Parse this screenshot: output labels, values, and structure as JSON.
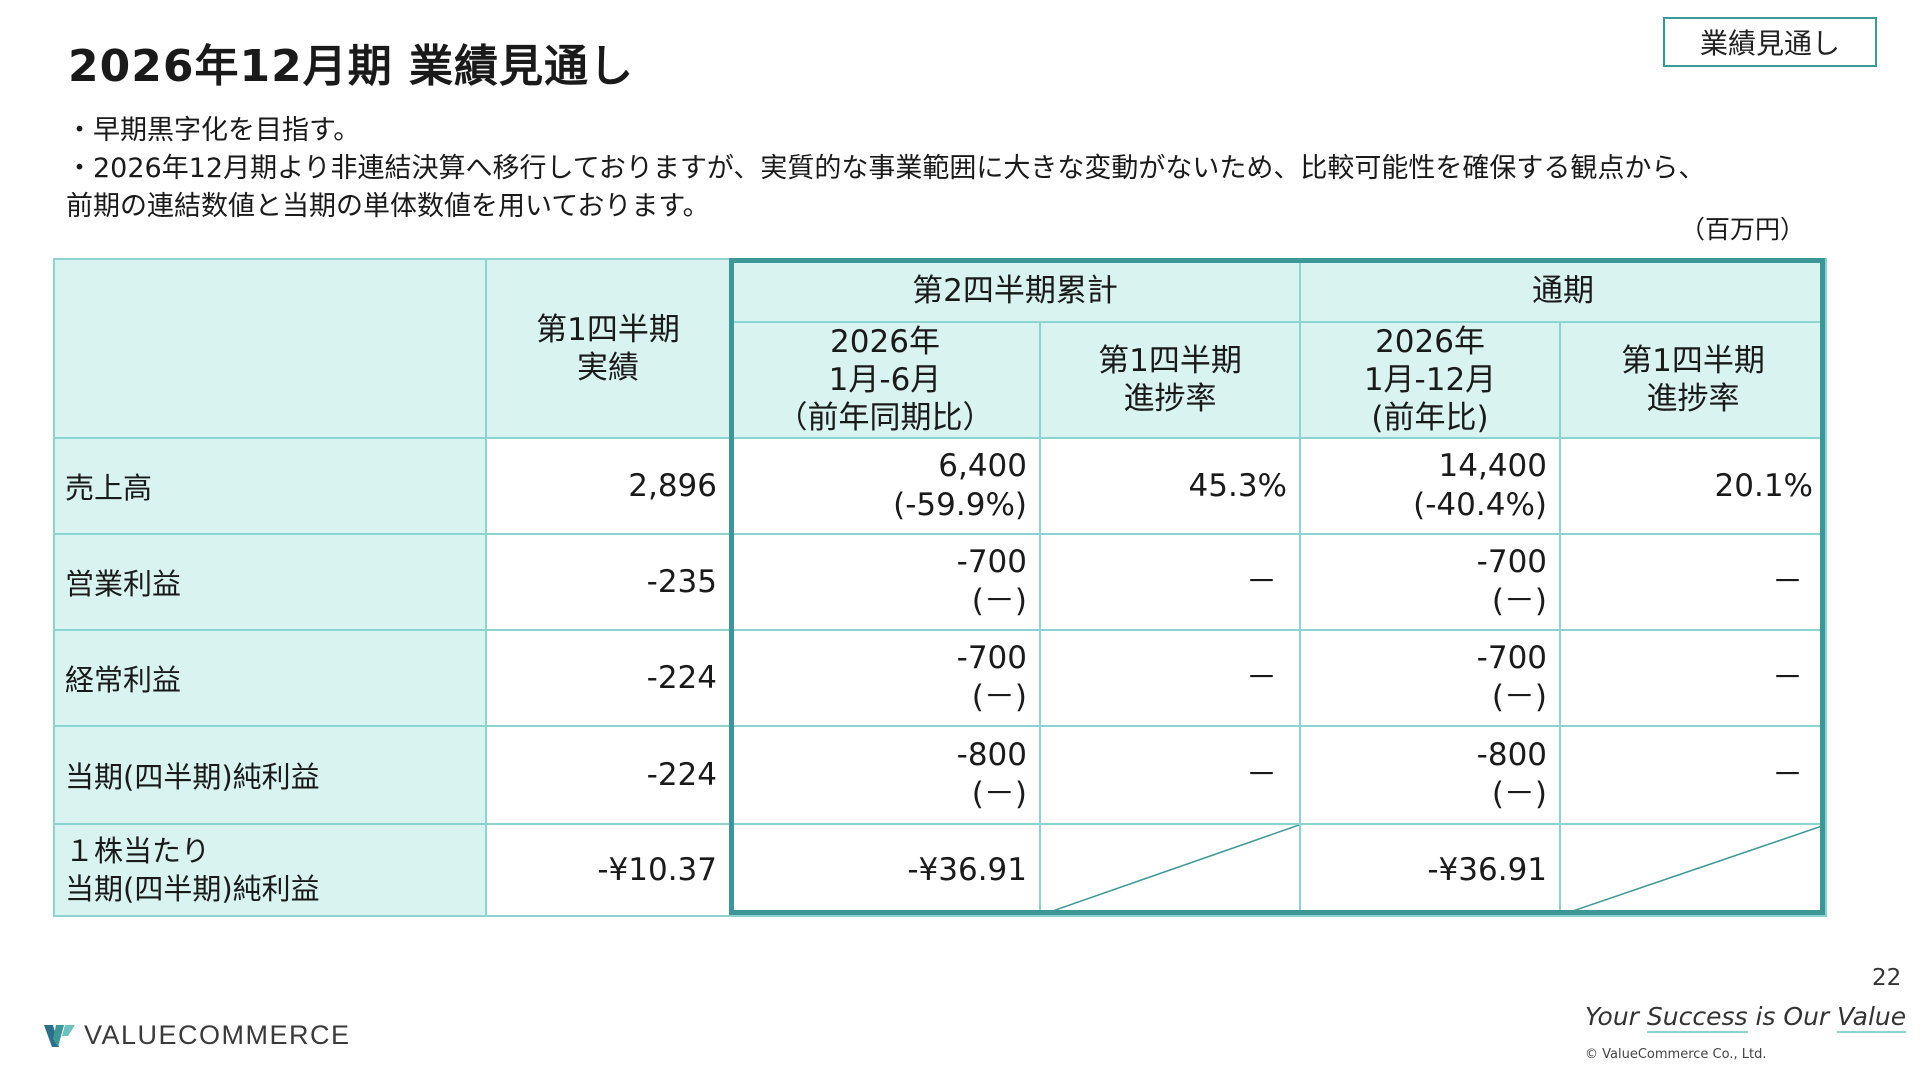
{
  "page": {
    "title": "2026年12月期 業績見通し",
    "tag": "業績見通し",
    "bullets": [
      "・早期黒字化を目指す。",
      "・2026年12月期より非連結決算へ移行しておりますが、実質的な事業範囲に大きな変動がないため、比較可能性を確保する観点から、",
      "前期の連結数値と当期の単体数値を用いております。"
    ],
    "unit": "（百万円）",
    "page_number": "22",
    "slogan": {
      "your": "Your ",
      "success": "Success",
      "is_our": " is Our ",
      "value": "Value"
    },
    "copyright": "© ValueCommerce Co., Ltd.",
    "logo_text": "VALUECOMMERCE",
    "accent_color": "#3d9796",
    "header_bg_color": "#d9f3f1"
  },
  "table": {
    "header": {
      "q1_actual": [
        "第1四半期",
        "実績"
      ],
      "h1_group": "第2四半期累計",
      "fy_group": "通期",
      "h1_period": [
        "2026年",
        "1月-6月",
        "（前年同期比）"
      ],
      "h1_progress": [
        "第1四半期",
        "進捗率"
      ],
      "fy_period": [
        "2026年",
        "1月-12月",
        "(前年比)"
      ],
      "fy_progress": [
        "第1四半期",
        "進捗率"
      ]
    },
    "rows": [
      {
        "label": [
          "売上高"
        ],
        "q1": "2,896",
        "h1": [
          "6,400",
          "(-59.9%)"
        ],
        "h1_progress": "45.3%",
        "fy": [
          "14,400",
          "(-40.4%)"
        ],
        "fy_progress": "20.1%"
      },
      {
        "label": [
          "営業利益"
        ],
        "q1": "-235",
        "h1": [
          "-700",
          "(－)"
        ],
        "h1_progress": "－",
        "fy": [
          "-700",
          "(－)"
        ],
        "fy_progress": "－"
      },
      {
        "label": [
          "経常利益"
        ],
        "q1": "-224",
        "h1": [
          "-700",
          "(－)"
        ],
        "h1_progress": "－",
        "fy": [
          "-700",
          "(－)"
        ],
        "fy_progress": "－"
      },
      {
        "label": [
          "当期(四半期)純利益"
        ],
        "q1": "-224",
        "h1": [
          "-800",
          "(－)"
        ],
        "h1_progress": "－",
        "fy": [
          "-800",
          "(－)"
        ],
        "fy_progress": "－"
      },
      {
        "label": [
          "１株当たり",
          "当期(四半期)純利益"
        ],
        "q1": "-¥10.37",
        "h1": [
          "-¥36.91"
        ],
        "h1_progress": null,
        "fy": [
          "-¥36.91"
        ],
        "fy_progress": null
      }
    ]
  }
}
